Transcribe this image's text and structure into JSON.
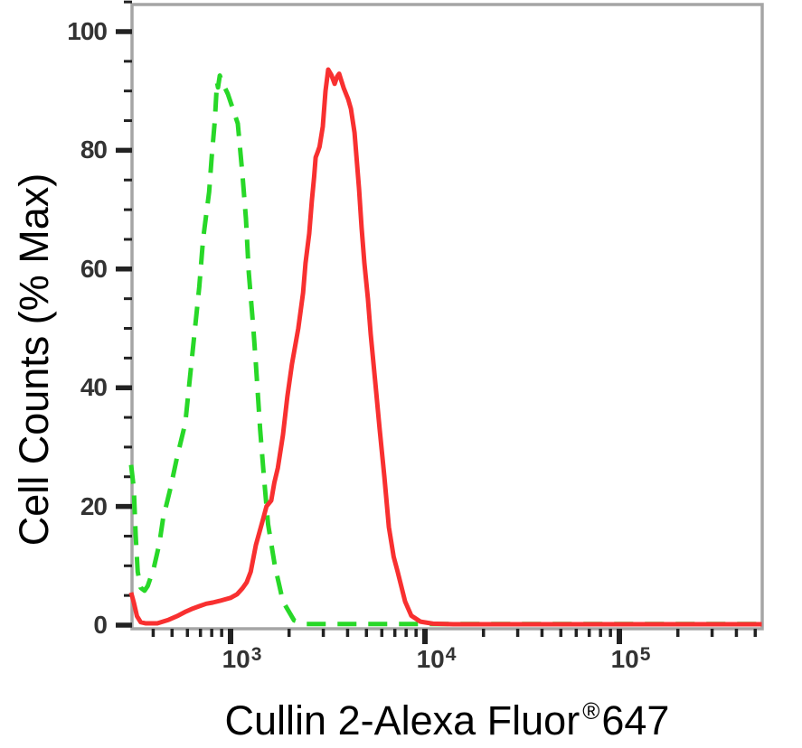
{
  "chart_data": {
    "type": "line",
    "title": "",
    "xlabel": "Cullin 2-Alexa Fluor®647",
    "ylabel": "Cell Counts (% Max)",
    "x_scale": "log10",
    "x_range": [
      308,
      540000
    ],
    "ylim": [
      0,
      105
    ],
    "grid": false,
    "legend_position": "none",
    "y_major_ticks": [
      100,
      80,
      60,
      40,
      20,
      0
    ],
    "y_minor_ticks": [
      105,
      95,
      90,
      85,
      75,
      70,
      65,
      55,
      50,
      45,
      35,
      30,
      25,
      15,
      10,
      5
    ],
    "x_major_ticks": [
      1000,
      10000,
      100000
    ],
    "x_minor_ticks": [
      400,
      500,
      600,
      700,
      800,
      900,
      2000,
      3000,
      4000,
      5000,
      6000,
      7000,
      8000,
      9000,
      20000,
      30000,
      40000,
      50000,
      60000,
      70000,
      80000,
      90000,
      200000,
      300000,
      400000,
      500000
    ],
    "series": [
      {
        "name": "green-dashed-histogram",
        "color": "#28d828",
        "line_style": "dashed",
        "points": [
          [
            308,
            27
          ],
          [
            318,
            23
          ],
          [
            325,
            15
          ],
          [
            333,
            9
          ],
          [
            345,
            6.3
          ],
          [
            361,
            5.8
          ],
          [
            375,
            6.6
          ],
          [
            402,
            9.5
          ],
          [
            430,
            13.7
          ],
          [
            450,
            18
          ],
          [
            490,
            23
          ],
          [
            532,
            28.5
          ],
          [
            585,
            34
          ],
          [
            640,
            46.5
          ],
          [
            690,
            57
          ],
          [
            722,
            65
          ],
          [
            776,
            73
          ],
          [
            800,
            79
          ],
          [
            830,
            85
          ],
          [
            852,
            91.5
          ],
          [
            862,
            90.6
          ],
          [
            880,
            92.6
          ],
          [
            905,
            91.5
          ],
          [
            968,
            89.5
          ],
          [
            1090,
            84.5
          ],
          [
            1150,
            76
          ],
          [
            1200,
            68.5
          ],
          [
            1240,
            59.5
          ],
          [
            1310,
            50
          ],
          [
            1350,
            44
          ],
          [
            1420,
            33
          ],
          [
            1480,
            25.5
          ],
          [
            1560,
            17
          ],
          [
            1690,
            10
          ],
          [
            1860,
            4
          ],
          [
            2120,
            0.8
          ],
          [
            2400,
            0.2
          ],
          [
            540000,
            0.2
          ]
        ]
      },
      {
        "name": "red-solid-histogram",
        "color": "#f83030",
        "line_style": "solid",
        "points": [
          [
            308,
            5.5
          ],
          [
            318,
            3.8
          ],
          [
            330,
            1.5
          ],
          [
            345,
            0.5
          ],
          [
            365,
            0.3
          ],
          [
            420,
            0.3
          ],
          [
            480,
            0.9
          ],
          [
            530,
            1.5
          ],
          [
            590,
            2.3
          ],
          [
            640,
            2.8
          ],
          [
            690,
            3.2
          ],
          [
            750,
            3.6
          ],
          [
            810,
            3.8
          ],
          [
            880,
            4.1
          ],
          [
            1000,
            4.6
          ],
          [
            1080,
            5.2
          ],
          [
            1150,
            6.2
          ],
          [
            1210,
            7.2
          ],
          [
            1270,
            9.0
          ],
          [
            1350,
            13.5
          ],
          [
            1460,
            17.5
          ],
          [
            1530,
            20.0
          ],
          [
            1620,
            21.0
          ],
          [
            1680,
            24.0
          ],
          [
            1750,
            26.5
          ],
          [
            1860,
            32
          ],
          [
            1960,
            38.5
          ],
          [
            2070,
            44
          ],
          [
            2230,
            50
          ],
          [
            2360,
            56
          ],
          [
            2430,
            61
          ],
          [
            2540,
            66
          ],
          [
            2620,
            71.5
          ],
          [
            2690,
            75.5
          ],
          [
            2740,
            78.8
          ],
          [
            2800,
            79.6
          ],
          [
            2870,
            80.6
          ],
          [
            2980,
            84
          ],
          [
            3080,
            90
          ],
          [
            3180,
            93.6
          ],
          [
            3300,
            92.7
          ],
          [
            3430,
            91.2
          ],
          [
            3530,
            92.4
          ],
          [
            3620,
            92.9
          ],
          [
            3820,
            90.5
          ],
          [
            4030,
            88.6
          ],
          [
            4160,
            87
          ],
          [
            4340,
            83
          ],
          [
            4580,
            73.5
          ],
          [
            4720,
            67
          ],
          [
            4880,
            61
          ],
          [
            5090,
            55
          ],
          [
            5260,
            49
          ],
          [
            5550,
            41
          ],
          [
            5850,
            33
          ],
          [
            6180,
            25
          ],
          [
            6520,
            16.5
          ],
          [
            6900,
            11.5
          ],
          [
            7240,
            9
          ],
          [
            7900,
            4
          ],
          [
            8510,
            1.6
          ],
          [
            9480,
            0.6
          ],
          [
            11000,
            0.25
          ],
          [
            14000,
            0.15
          ],
          [
            540000,
            0.15
          ]
        ]
      }
    ]
  },
  "x_title": {
    "prefix": "Cullin 2-Alexa Fluor",
    "registered_mark": "®",
    "suffix": "647"
  },
  "axes_style": {
    "frame_color": "#a5a5a5",
    "tick_color": "#222222",
    "tick_label_color": "#333333"
  }
}
